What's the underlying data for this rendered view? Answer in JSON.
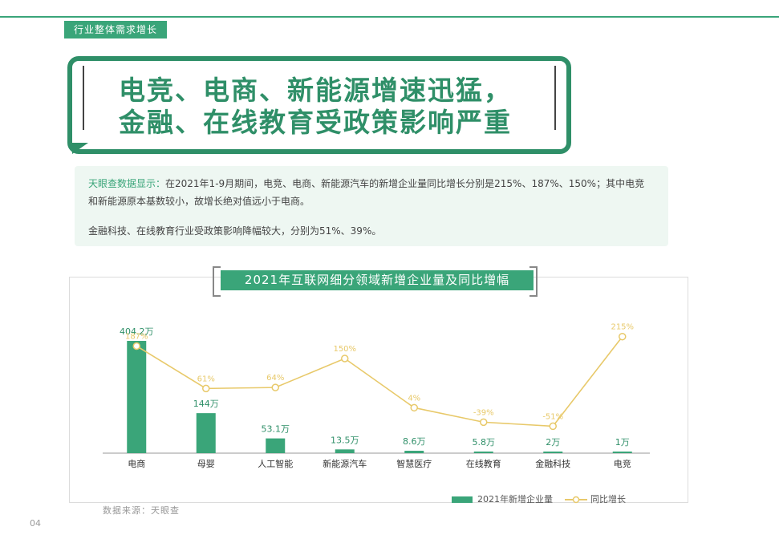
{
  "section_tab": "行业整体需求增长",
  "title": {
    "line1": "电竞、电商、新能源增速迅猛，",
    "line2": "金融、在线教育受政策影响严重"
  },
  "info": {
    "source_lead": "天眼查数据显示：",
    "p1_rest": "在2021年1-9月期间，电竞、电商、新能源汽车的新增企业量同比增长分别是215%、187%、150%；其中电竞和新能源原本基数较小，故增长绝对值远小于电商。",
    "p2": "金融科技、在线教育行业受政策影响降幅较大，分别为51%、39%。"
  },
  "chart_title": "2021年互联网细分领域新增企业量及同比增幅",
  "chart_data": {
    "type": "bar",
    "title": "2021年互联网细分领域新增企业量及同比增幅",
    "categories": [
      "电商",
      "母婴",
      "人工智能",
      "新能源汽车",
      "智慧医疗",
      "在线教育",
      "金融科技",
      "电竞"
    ],
    "series": [
      {
        "name": "2021年新增企业量",
        "type": "bar",
        "values": [
          404.2,
          144,
          53.1,
          13.5,
          8.6,
          5.8,
          2,
          1
        ],
        "labels": [
          "404.2万",
          "144万",
          "53.1万",
          "13.5万",
          "8.6万",
          "5.8万",
          "2万",
          "1万"
        ]
      },
      {
        "name": "同比增长",
        "type": "line",
        "values": [
          187,
          61,
          64,
          150,
          4,
          -39,
          -51,
          215
        ],
        "labels": [
          "187%",
          "61%",
          "64%",
          "150%",
          "4%",
          "-39%",
          "-51%",
          "215%"
        ]
      }
    ],
    "colors": {
      "bar": "#3aa579",
      "line": "#e8c96a"
    }
  },
  "legend": {
    "bar_label": "2021年新增企业量",
    "line_label": "同比增长"
  },
  "source": "数据来源：天眼查",
  "page_number": "04"
}
